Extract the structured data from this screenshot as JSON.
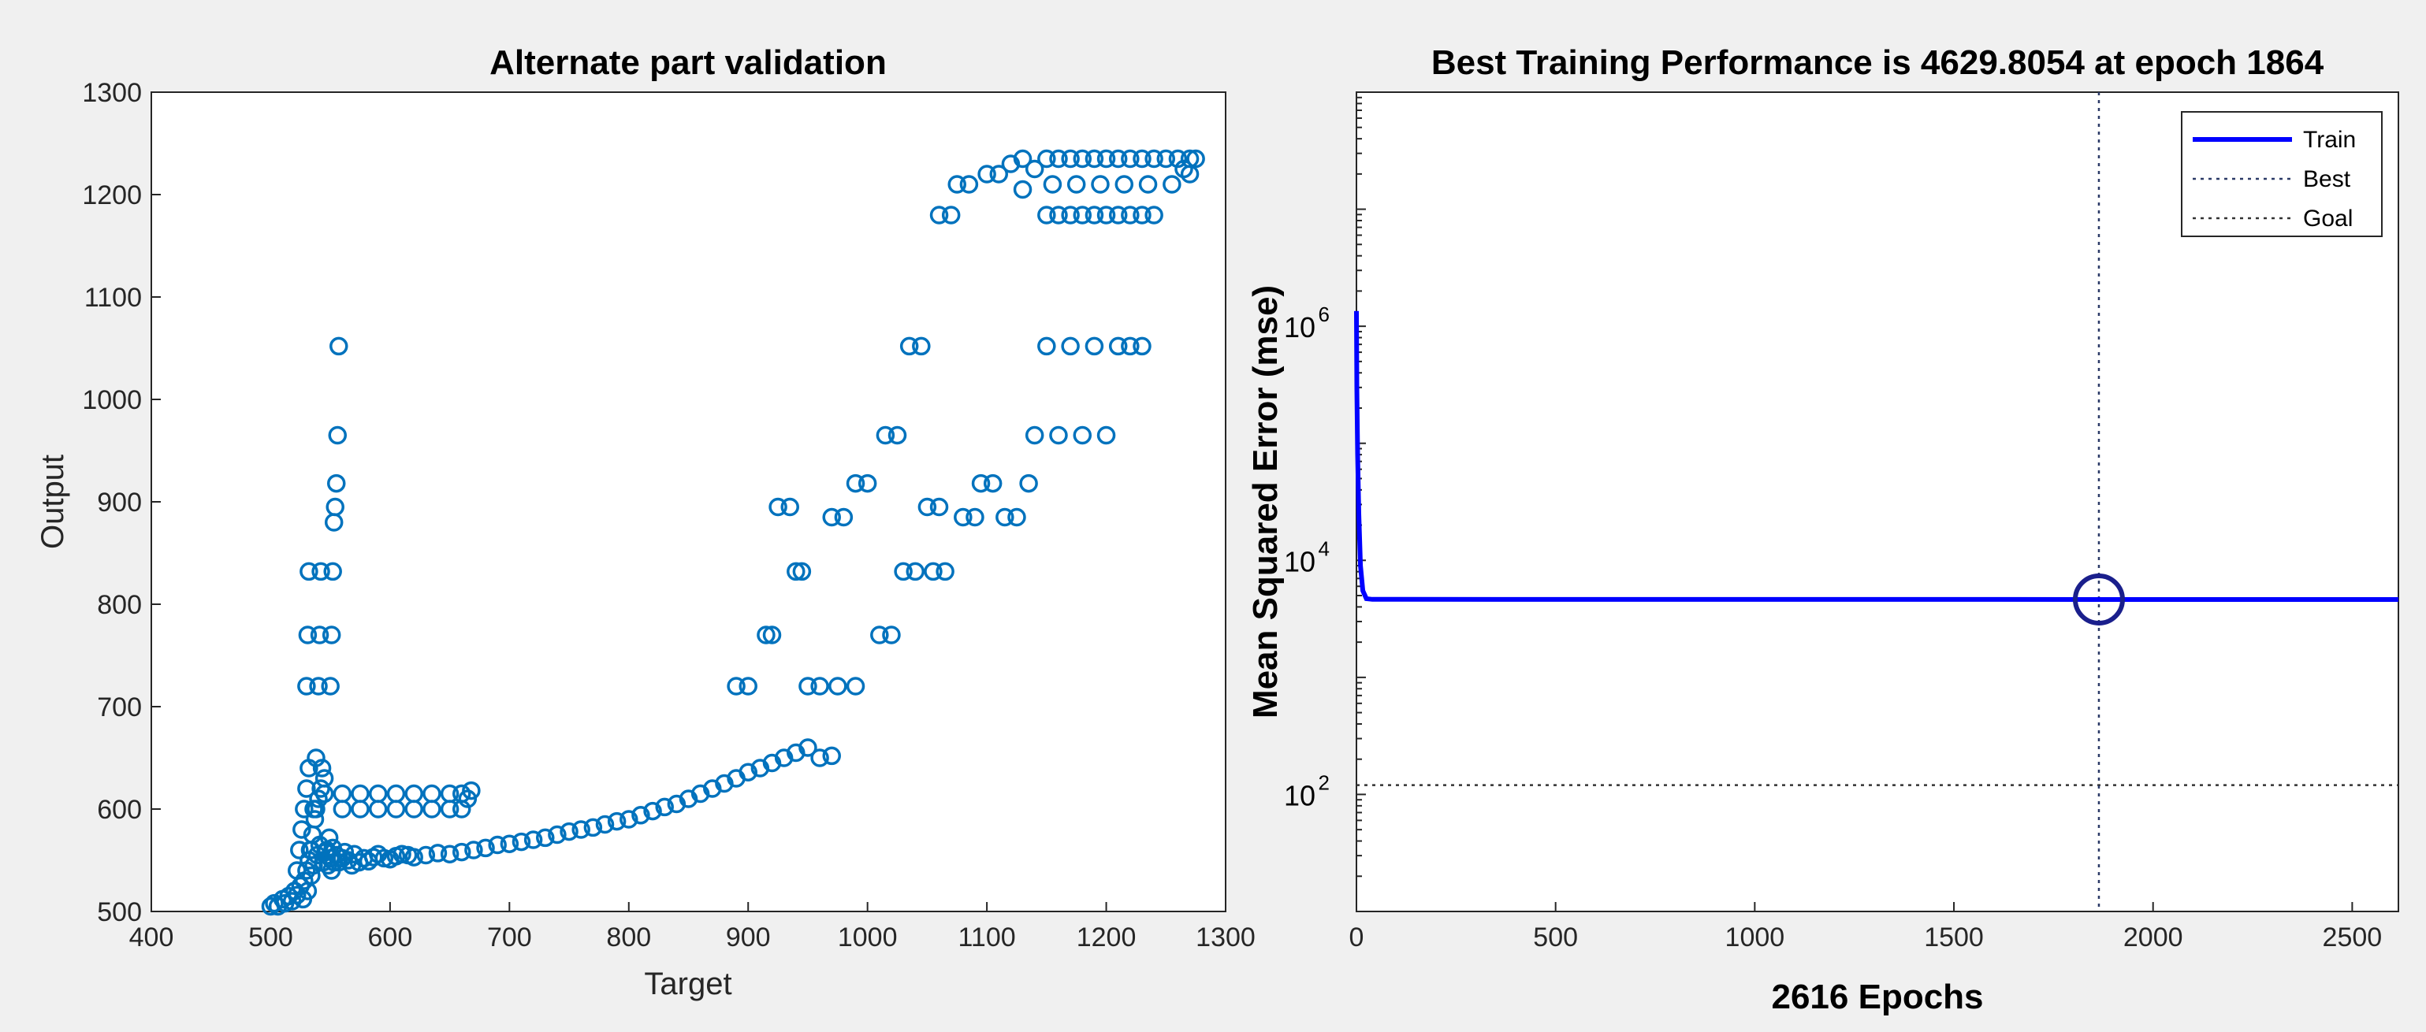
{
  "chart_data": [
    {
      "type": "scatter",
      "title": "Alternate part validation",
      "xlabel": "Target",
      "ylabel": "Output",
      "xlim": [
        400,
        1300
      ],
      "ylim": [
        500,
        1300
      ],
      "xticks": [
        "400",
        "500",
        "600",
        "700",
        "800",
        "900",
        "1000",
        "1100",
        "1200",
        "1300"
      ],
      "yticks": [
        "500",
        "600",
        "700",
        "800",
        "900",
        "1000",
        "1100",
        "1200",
        "1300"
      ],
      "marker": "circle-open",
      "color": "#0072bd",
      "series": [
        {
          "name": "validation points",
          "points": [
            [
              500,
              505
            ],
            [
              503,
              508
            ],
            [
              506,
              505
            ],
            [
              510,
              512
            ],
            [
              512,
              508
            ],
            [
              515,
              515
            ],
            [
              518,
              510
            ],
            [
              520,
              520
            ],
            [
              522,
              516
            ],
            [
              525,
              525
            ],
            [
              527,
              512
            ],
            [
              528,
              530
            ],
            [
              530,
              540
            ],
            [
              531,
              520
            ],
            [
              532,
              550
            ],
            [
              533,
              560
            ],
            [
              534,
              535
            ],
            [
              535,
              575
            ],
            [
              536,
              545
            ],
            [
              537,
              590
            ],
            [
              538,
              600
            ],
            [
              539,
              555
            ],
            [
              540,
              610
            ],
            [
              541,
              565
            ],
            [
              542,
              620
            ],
            [
              543,
              640
            ],
            [
              544,
              548
            ],
            [
              545,
              630
            ],
            [
              546,
              558
            ],
            [
              547,
              560
            ],
            [
              548,
              545
            ],
            [
              549,
              572
            ],
            [
              550,
              552
            ],
            [
              551,
              540
            ],
            [
              552,
              562
            ],
            [
              553,
              548
            ],
            [
              555,
              555
            ],
            [
              557,
              548
            ],
            [
              560,
              552
            ],
            [
              562,
              558
            ],
            [
              565,
              550
            ],
            [
              568,
              545
            ],
            [
              570,
              556
            ],
            [
              574,
              548
            ],
            [
              578,
              552
            ],
            [
              582,
              549
            ],
            [
              586,
              553
            ],
            [
              590,
              556
            ],
            [
              595,
              552
            ],
            [
              600,
              551
            ],
            [
              605,
              554
            ],
            [
              610,
              556
            ],
            [
              615,
              555
            ],
            [
              620,
              553
            ],
            [
              630,
              555
            ],
            [
              640,
              557
            ],
            [
              650,
              556
            ],
            [
              660,
              558
            ],
            [
              670,
              560
            ],
            [
              680,
              562
            ],
            [
              690,
              565
            ],
            [
              700,
              566
            ],
            [
              710,
              568
            ],
            [
              720,
              570
            ],
            [
              730,
              572
            ],
            [
              740,
              575
            ],
            [
              750,
              578
            ],
            [
              760,
              580
            ],
            [
              770,
              582
            ],
            [
              780,
              585
            ],
            [
              790,
              588
            ],
            [
              800,
              590
            ],
            [
              810,
              594
            ],
            [
              820,
              598
            ],
            [
              830,
              602
            ],
            [
              840,
              605
            ],
            [
              850,
              610
            ],
            [
              860,
              615
            ],
            [
              870,
              620
            ],
            [
              880,
              625
            ],
            [
              890,
              630
            ],
            [
              900,
              636
            ],
            [
              910,
              640
            ],
            [
              920,
              645
            ],
            [
              930,
              650
            ],
            [
              940,
              655
            ],
            [
              950,
              660
            ],
            [
              960,
              650
            ],
            [
              970,
              652
            ],
            [
              520,
              520
            ],
            [
              522,
              540
            ],
            [
              524,
              560
            ],
            [
              526,
              580
            ],
            [
              528,
              600
            ],
            [
              530,
              620
            ],
            [
              532,
              640
            ],
            [
              534,
              560
            ],
            [
              536,
              600
            ],
            [
              538,
              650
            ],
            [
              530,
              720
            ],
            [
              531,
              770
            ],
            [
              532,
              832
            ],
            [
              540,
              720
            ],
            [
              541,
              770
            ],
            [
              542,
              832
            ],
            [
              550,
              720
            ],
            [
              551,
              770
            ],
            [
              552,
              832
            ],
            [
              553,
              880
            ],
            [
              554,
              895
            ],
            [
              555,
              918
            ],
            [
              556,
              965
            ],
            [
              557,
              1052
            ],
            [
              545,
              615
            ],
            [
              560,
              615
            ],
            [
              575,
              615
            ],
            [
              590,
              615
            ],
            [
              605,
              615
            ],
            [
              620,
              615
            ],
            [
              635,
              615
            ],
            [
              650,
              615
            ],
            [
              660,
              615
            ],
            [
              665,
              610
            ],
            [
              668,
              618
            ],
            [
              560,
              600
            ],
            [
              575,
              600
            ],
            [
              590,
              600
            ],
            [
              605,
              600
            ],
            [
              620,
              600
            ],
            [
              635,
              600
            ],
            [
              650,
              600
            ],
            [
              660,
              600
            ],
            [
              890,
              720
            ],
            [
              900,
              720
            ],
            [
              915,
              770
            ],
            [
              920,
              770
            ],
            [
              940,
              832
            ],
            [
              945,
              832
            ],
            [
              925,
              895
            ],
            [
              935,
              895
            ],
            [
              950,
              720
            ],
            [
              960,
              720
            ],
            [
              975,
              720
            ],
            [
              990,
              720
            ],
            [
              970,
              885
            ],
            [
              980,
              885
            ],
            [
              990,
              918
            ],
            [
              1000,
              918
            ],
            [
              1010,
              770
            ],
            [
              1020,
              770
            ],
            [
              1015,
              965
            ],
            [
              1025,
              965
            ],
            [
              1030,
              832
            ],
            [
              1040,
              832
            ],
            [
              1035,
              1052
            ],
            [
              1045,
              1052
            ],
            [
              1050,
              895
            ],
            [
              1060,
              895
            ],
            [
              1055,
              832
            ],
            [
              1065,
              832
            ],
            [
              1060,
              1180
            ],
            [
              1070,
              1180
            ],
            [
              1075,
              1210
            ],
            [
              1085,
              1210
            ],
            [
              1080,
              885
            ],
            [
              1090,
              885
            ],
            [
              1095,
              918
            ],
            [
              1105,
              918
            ],
            [
              1100,
              1220
            ],
            [
              1110,
              1220
            ],
            [
              1115,
              885
            ],
            [
              1125,
              885
            ],
            [
              1120,
              1230
            ],
            [
              1130,
              1235
            ],
            [
              1135,
              918
            ],
            [
              1140,
              965
            ],
            [
              1150,
              1052
            ],
            [
              1160,
              965
            ],
            [
              1170,
              1052
            ],
            [
              1180,
              965
            ],
            [
              1190,
              1052
            ],
            [
              1200,
              965
            ],
            [
              1210,
              1052
            ],
            [
              1220,
              1052
            ],
            [
              1230,
              1052
            ],
            [
              1150,
              1180
            ],
            [
              1160,
              1180
            ],
            [
              1170,
              1180
            ],
            [
              1180,
              1180
            ],
            [
              1190,
              1180
            ],
            [
              1200,
              1180
            ],
            [
              1210,
              1180
            ],
            [
              1220,
              1180
            ],
            [
              1230,
              1180
            ],
            [
              1240,
              1180
            ],
            [
              1150,
              1235
            ],
            [
              1160,
              1235
            ],
            [
              1170,
              1235
            ],
            [
              1180,
              1235
            ],
            [
              1190,
              1235
            ],
            [
              1200,
              1235
            ],
            [
              1210,
              1235
            ],
            [
              1220,
              1235
            ],
            [
              1230,
              1235
            ],
            [
              1240,
              1235
            ],
            [
              1250,
              1235
            ],
            [
              1260,
              1235
            ],
            [
              1270,
              1235
            ],
            [
              1275,
              1235
            ],
            [
              1155,
              1210
            ],
            [
              1175,
              1210
            ],
            [
              1195,
              1210
            ],
            [
              1215,
              1210
            ],
            [
              1235,
              1210
            ],
            [
              1255,
              1210
            ],
            [
              1265,
              1225
            ],
            [
              1270,
              1220
            ],
            [
              1130,
              1205
            ],
            [
              1140,
              1225
            ]
          ]
        }
      ]
    },
    {
      "type": "line",
      "title": "Best Training Performance is 4629.8054 at epoch 1864",
      "xlabel": "2616 Epochs",
      "ylabel": "Mean Squared Error  (mse)",
      "yscale": "log",
      "xlim": [
        0,
        2616
      ],
      "ylim": [
        10,
        100000000
      ],
      "xticks": [
        "0",
        "500",
        "1000",
        "1500",
        "2000",
        "2500"
      ],
      "yticks": [
        {
          "base": "10",
          "exp": "2",
          "value": 100
        },
        {
          "base": "10",
          "exp": "4",
          "value": 10000
        },
        {
          "base": "10",
          "exp": "6",
          "value": 1000000
        }
      ],
      "legend_position": "top-right",
      "legend": [
        "Train",
        "Best",
        "Goal"
      ],
      "series": [
        {
          "name": "Train",
          "color": "#0000ff",
          "x": [
            0,
            1,
            3,
            6,
            10,
            16,
            25,
            40,
            2616
          ],
          "y": [
            1350000,
            300000,
            80000,
            25000,
            9000,
            5500,
            4700,
            4640,
            4629.8054
          ]
        },
        {
          "name": "Best",
          "best_epoch": 1864,
          "best_value": 4629.8054
        },
        {
          "name": "Goal",
          "value": 120
        }
      ]
    }
  ]
}
